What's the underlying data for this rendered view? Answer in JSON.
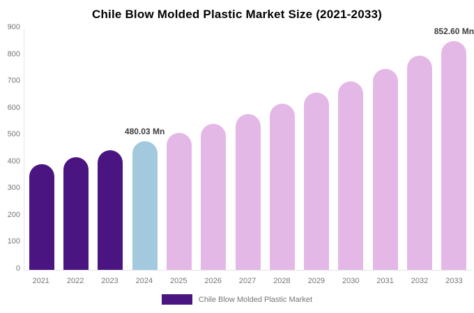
{
  "title": "Chile Blow Molded Plastic Market Size (2021-2033)",
  "legend": {
    "label": "Chile Blow Molded Plastic Market",
    "swatch_color": "#4a1580"
  },
  "chart_data": {
    "type": "bar",
    "title": "Chile Blow Molded Plastic Market Size (2021-2033)",
    "categories": [
      "2021",
      "2022",
      "2023",
      "2024",
      "2025",
      "2026",
      "2027",
      "2028",
      "2029",
      "2030",
      "2031",
      "2032",
      "2033"
    ],
    "values": [
      394,
      420,
      446,
      480.03,
      511.7,
      545.4,
      581.4,
      619.7,
      660.6,
      704.1,
      750.6,
      800.1,
      852.6
    ],
    "segments": [
      "historical",
      "historical",
      "historical",
      "current",
      "forecast",
      "forecast",
      "forecast",
      "forecast",
      "forecast",
      "forecast",
      "forecast",
      "forecast",
      "forecast"
    ],
    "colors": {
      "historical": "#4a1580",
      "current": "#a3c9de",
      "forecast": "#e4b8e6"
    },
    "annotations": [
      {
        "category": "2024",
        "text": "480.03 Mn"
      },
      {
        "category": "2033",
        "text": "852.60 Mn"
      }
    ],
    "unit": "Mn",
    "xlabel": "",
    "ylabel": "",
    "ylim": [
      0,
      900
    ],
    "y_ticks": [
      0,
      100,
      200,
      300,
      400,
      500,
      600,
      700,
      800,
      900
    ],
    "grid": false,
    "legend_position": "bottom"
  }
}
